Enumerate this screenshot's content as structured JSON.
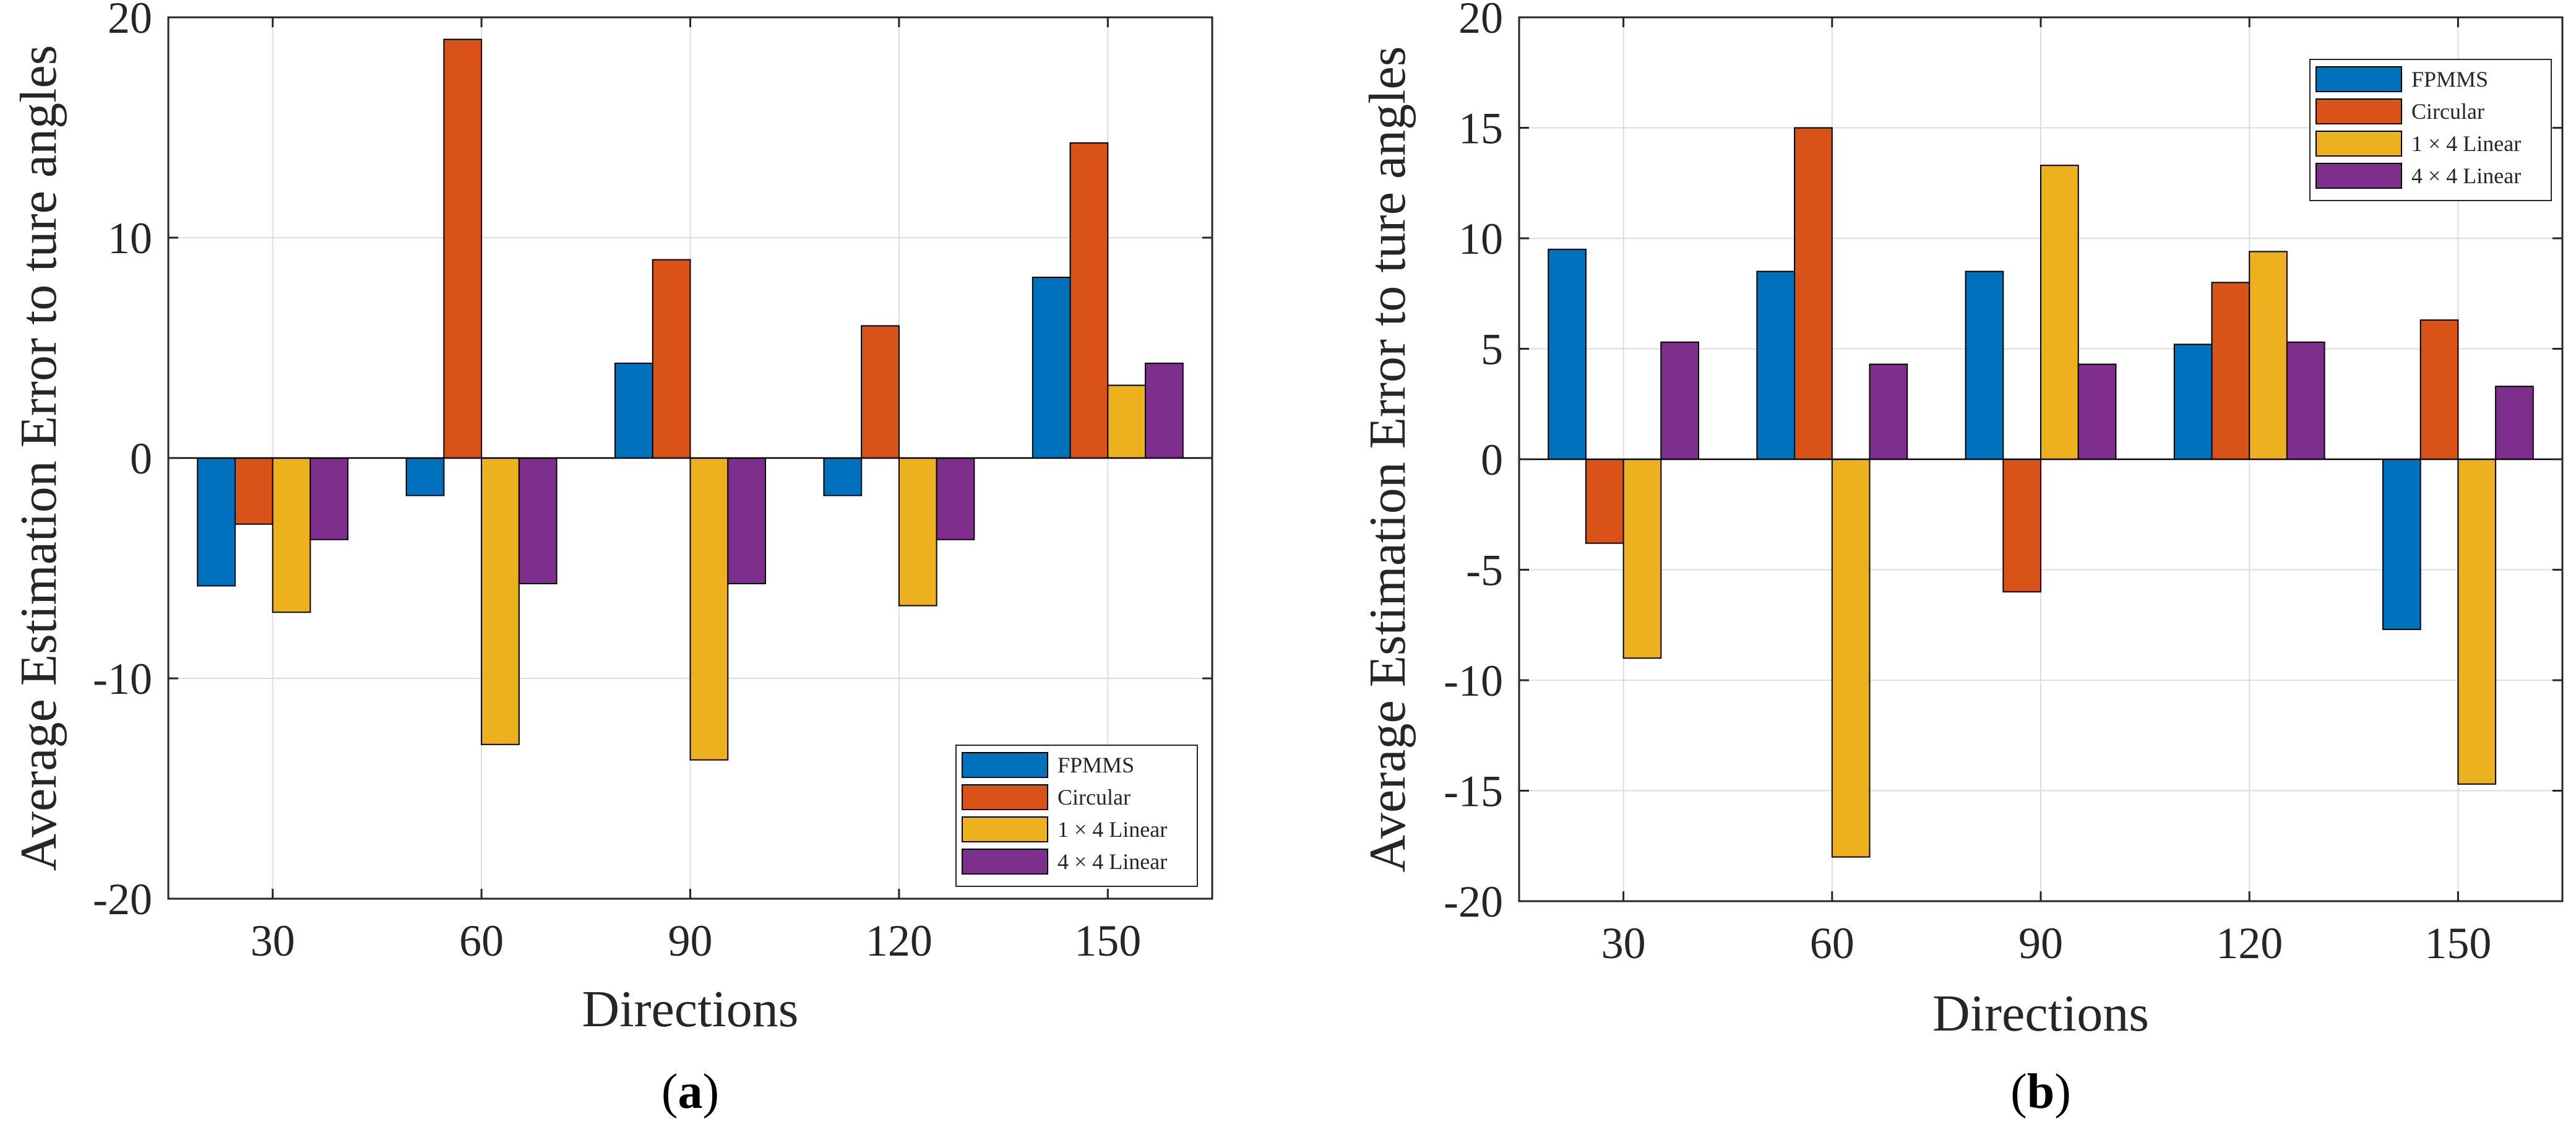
{
  "chart_data": [
    {
      "id": "a",
      "type": "bar",
      "panel_label": "a",
      "categories": [
        "30",
        "60",
        "90",
        "120",
        "150"
      ],
      "series": [
        {
          "name": "FPMMS",
          "values": [
            -5.8,
            -1.7,
            4.3,
            -1.7,
            8.2
          ]
        },
        {
          "name": "Circular",
          "values": [
            -3.0,
            19.0,
            9.0,
            6.0,
            14.3
          ]
        },
        {
          "name": "1 × 4 Linear",
          "values": [
            -7.0,
            -13.0,
            -13.7,
            -6.7,
            3.3
          ]
        },
        {
          "name": "4 × 4 Linear",
          "values": [
            -3.7,
            -5.7,
            -5.7,
            -3.7,
            4.3
          ]
        }
      ],
      "xlabel": "Directions",
      "ylabel": "Average Estimation Error to ture angles",
      "ylim": [
        -20,
        20
      ],
      "yticks": [
        "-20",
        "-10",
        "0",
        "10",
        "20"
      ],
      "grid": true,
      "legend_position": "bottom-right"
    },
    {
      "id": "b",
      "type": "bar",
      "panel_label": "b",
      "categories": [
        "30",
        "60",
        "90",
        "120",
        "150"
      ],
      "series": [
        {
          "name": "FPMMS",
          "values": [
            9.5,
            8.5,
            8.5,
            5.2,
            -7.7
          ]
        },
        {
          "name": "Circular",
          "values": [
            -3.8,
            15.0,
            -6.0,
            8.0,
            6.3
          ]
        },
        {
          "name": "1 × 4 Linear",
          "values": [
            -9.0,
            -18.0,
            13.3,
            9.4,
            -14.7
          ]
        },
        {
          "name": "4 × 4 Linear",
          "values": [
            5.3,
            4.3,
            4.3,
            5.3,
            3.3
          ]
        }
      ],
      "xlabel": "Directions",
      "ylabel": "Average Estimation Error to ture angles",
      "ylim": [
        -20,
        20
      ],
      "yticks": [
        "-20",
        "-15",
        "-10",
        "-5",
        "0",
        "5",
        "10",
        "15",
        "20"
      ],
      "grid": true,
      "legend_position": "top-right"
    }
  ],
  "colors": {
    "FPMMS": "#0072BD",
    "Circular": "#D95319",
    "1 × 4 Linear": "#EDB120",
    "4 × 4 Linear": "#7E2F8E"
  }
}
